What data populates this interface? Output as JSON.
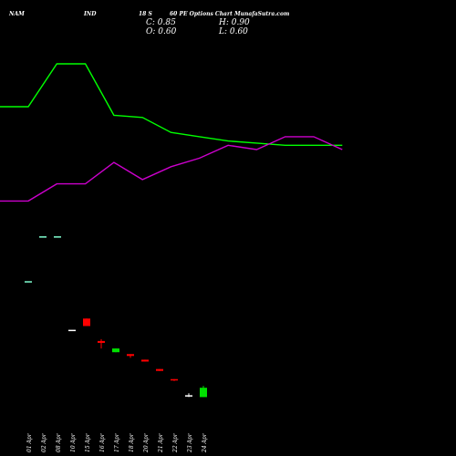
{
  "header": {
    "t1": "NAM",
    "t2": "IND",
    "t3": "18 S",
    "t4": "60 PE Options Chart MunafaSutra.com",
    "close": "C: 0.85",
    "open": "O: 0.60",
    "high": "H: 0.90",
    "low": "L: 0.60"
  },
  "chart_data": {
    "type": "candlestick",
    "title": "NAM IND 18 S 60 PE Options Chart MunafaSutra.com",
    "categories": [
      "01 Apr",
      "02 Apr",
      "08 Apr",
      "10 Apr",
      "15 Apr",
      "16 Apr",
      "17 Apr",
      "18 Apr",
      "20 Apr",
      "21 Apr",
      "22 Apr",
      "23 Apr",
      "24 Apr"
    ],
    "candles": [
      {
        "date": "01 Apr",
        "open": 3.7,
        "high": 3.7,
        "low": 3.7,
        "close": 3.7
      },
      {
        "date": "02 Apr",
        "open": 4.9,
        "high": 4.9,
        "low": 4.9,
        "close": 4.9
      },
      {
        "date": "08 Apr",
        "open": 4.9,
        "high": 4.9,
        "low": 4.9,
        "close": 4.9
      },
      {
        "date": "10 Apr",
        "open": 2.4,
        "high": 2.4,
        "low": 2.4,
        "close": 2.4
      },
      {
        "date": "15 Apr",
        "open": 2.7,
        "high": 2.7,
        "low": 2.5,
        "close": 2.5
      },
      {
        "date": "16 Apr",
        "open": 2.1,
        "high": 2.15,
        "low": 1.9,
        "close": 2.05
      },
      {
        "date": "17 Apr",
        "open": 1.8,
        "high": 1.9,
        "low": 1.8,
        "close": 1.9
      },
      {
        "date": "18 Apr",
        "open": 1.75,
        "high": 1.75,
        "low": 1.65,
        "close": 1.7
      },
      {
        "date": "20 Apr",
        "open": 1.6,
        "high": 1.6,
        "low": 1.55,
        "close": 1.55
      },
      {
        "date": "21 Apr",
        "open": 1.35,
        "high": 1.35,
        "low": 1.3,
        "close": 1.3
      },
      {
        "date": "22 Apr",
        "open": 1.08,
        "high": 1.08,
        "low": 1.03,
        "close": 1.05
      },
      {
        "date": "23 Apr",
        "open": 0.65,
        "high": 0.7,
        "low": 0.6,
        "close": 0.65
      },
      {
        "date": "24 Apr",
        "open": 0.6,
        "high": 0.9,
        "low": 0.6,
        "close": 0.85
      }
    ],
    "series": [
      {
        "values": [
          100,
          100,
          120,
          120,
          96,
          95,
          88,
          86,
          84,
          83,
          82,
          82,
          82
        ]
      },
      {
        "values": [
          56,
          56,
          64,
          64,
          74,
          66,
          72,
          76,
          82,
          80,
          86,
          86,
          80
        ]
      }
    ],
    "colors": {
      "up": "#00e000",
      "down": "#ff0000",
      "line1": "#00ff00",
      "line2": "#cc00cc",
      "neutral": "#ffffff",
      "tick": "#ffffff"
    }
  }
}
